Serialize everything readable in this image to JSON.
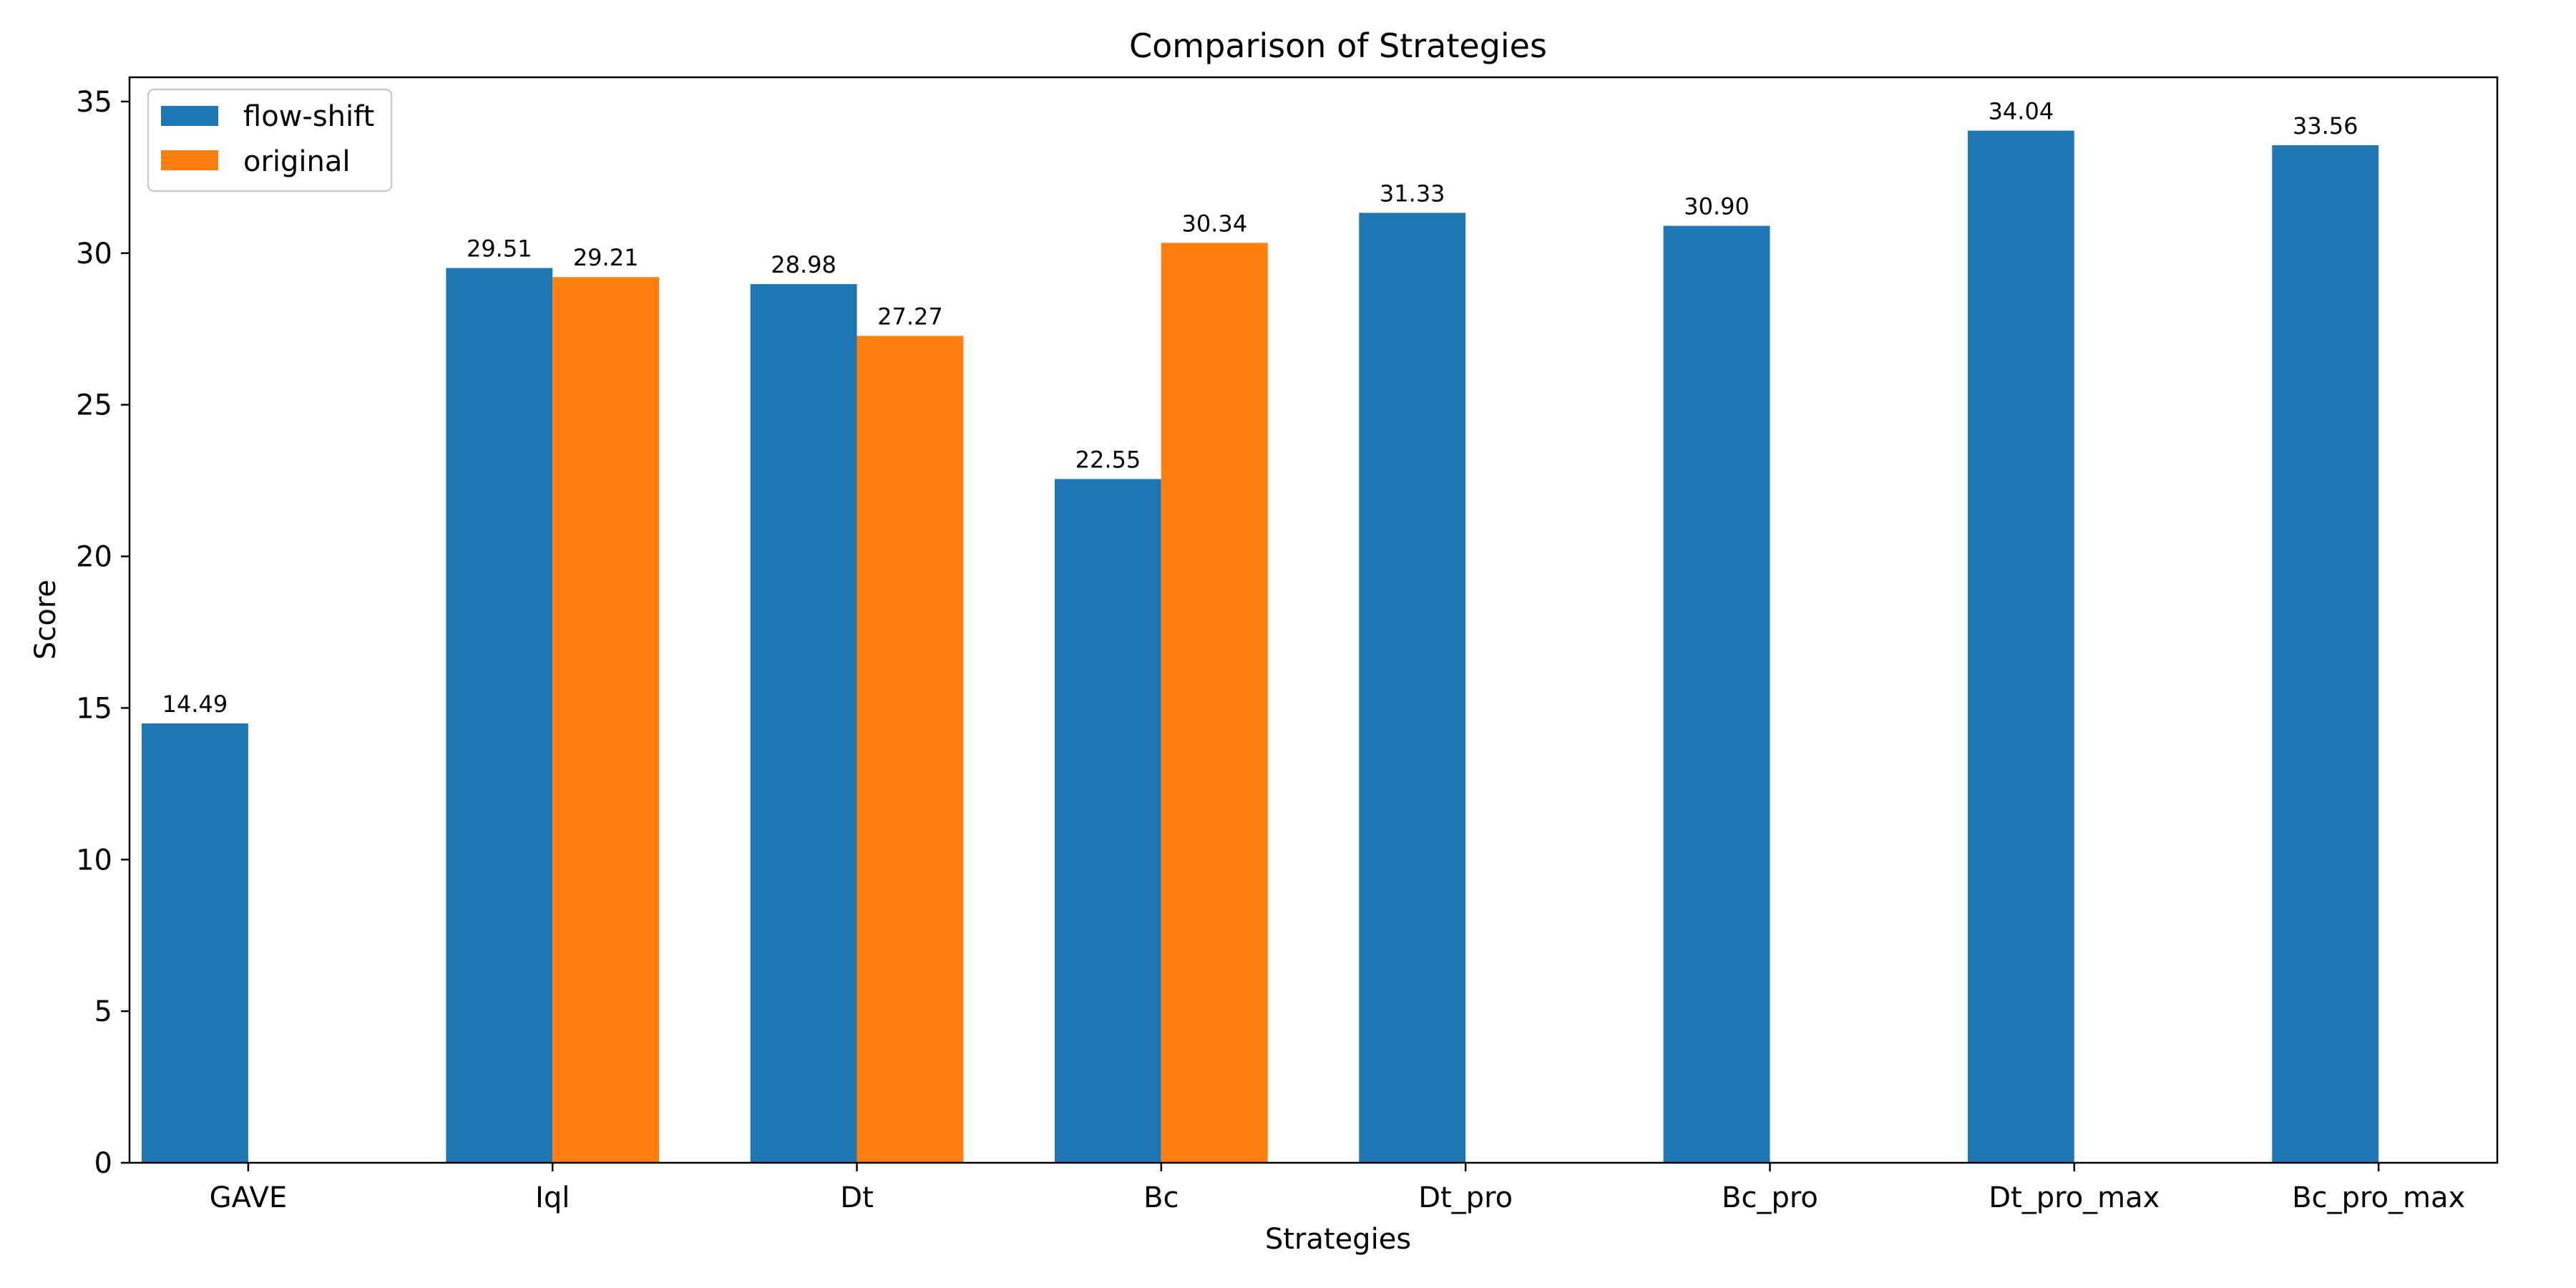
{
  "chart_data": {
    "type": "bar",
    "title": "Comparison of Strategies",
    "xlabel": "Strategies",
    "ylabel": "Score",
    "categories": [
      "GAVE",
      "Iql",
      "Dt",
      "Bc",
      "Dt_pro",
      "Bc_pro",
      "Dt_pro_max",
      "Bc_pro_max"
    ],
    "series": [
      {
        "name": "flow-shift",
        "color": "#1f77b4",
        "values": [
          14.49,
          29.51,
          28.98,
          22.55,
          31.33,
          30.9,
          34.04,
          33.56
        ]
      },
      {
        "name": "original",
        "color": "#ff7f0e",
        "values": [
          null,
          29.21,
          27.27,
          30.34,
          null,
          null,
          null,
          null
        ]
      }
    ],
    "data_labels": [
      [
        "14.49",
        "29.51",
        "28.98",
        "22.55",
        "31.33",
        "30.90",
        "34.04",
        "33.56"
      ],
      [
        "",
        "29.21",
        "27.27",
        "30.34",
        "",
        "",
        "",
        ""
      ]
    ],
    "ylim": [
      0,
      35.8
    ],
    "yticks": [
      0,
      5,
      10,
      15,
      20,
      25,
      30,
      35
    ],
    "grid": false,
    "legend_position": "top-left"
  }
}
